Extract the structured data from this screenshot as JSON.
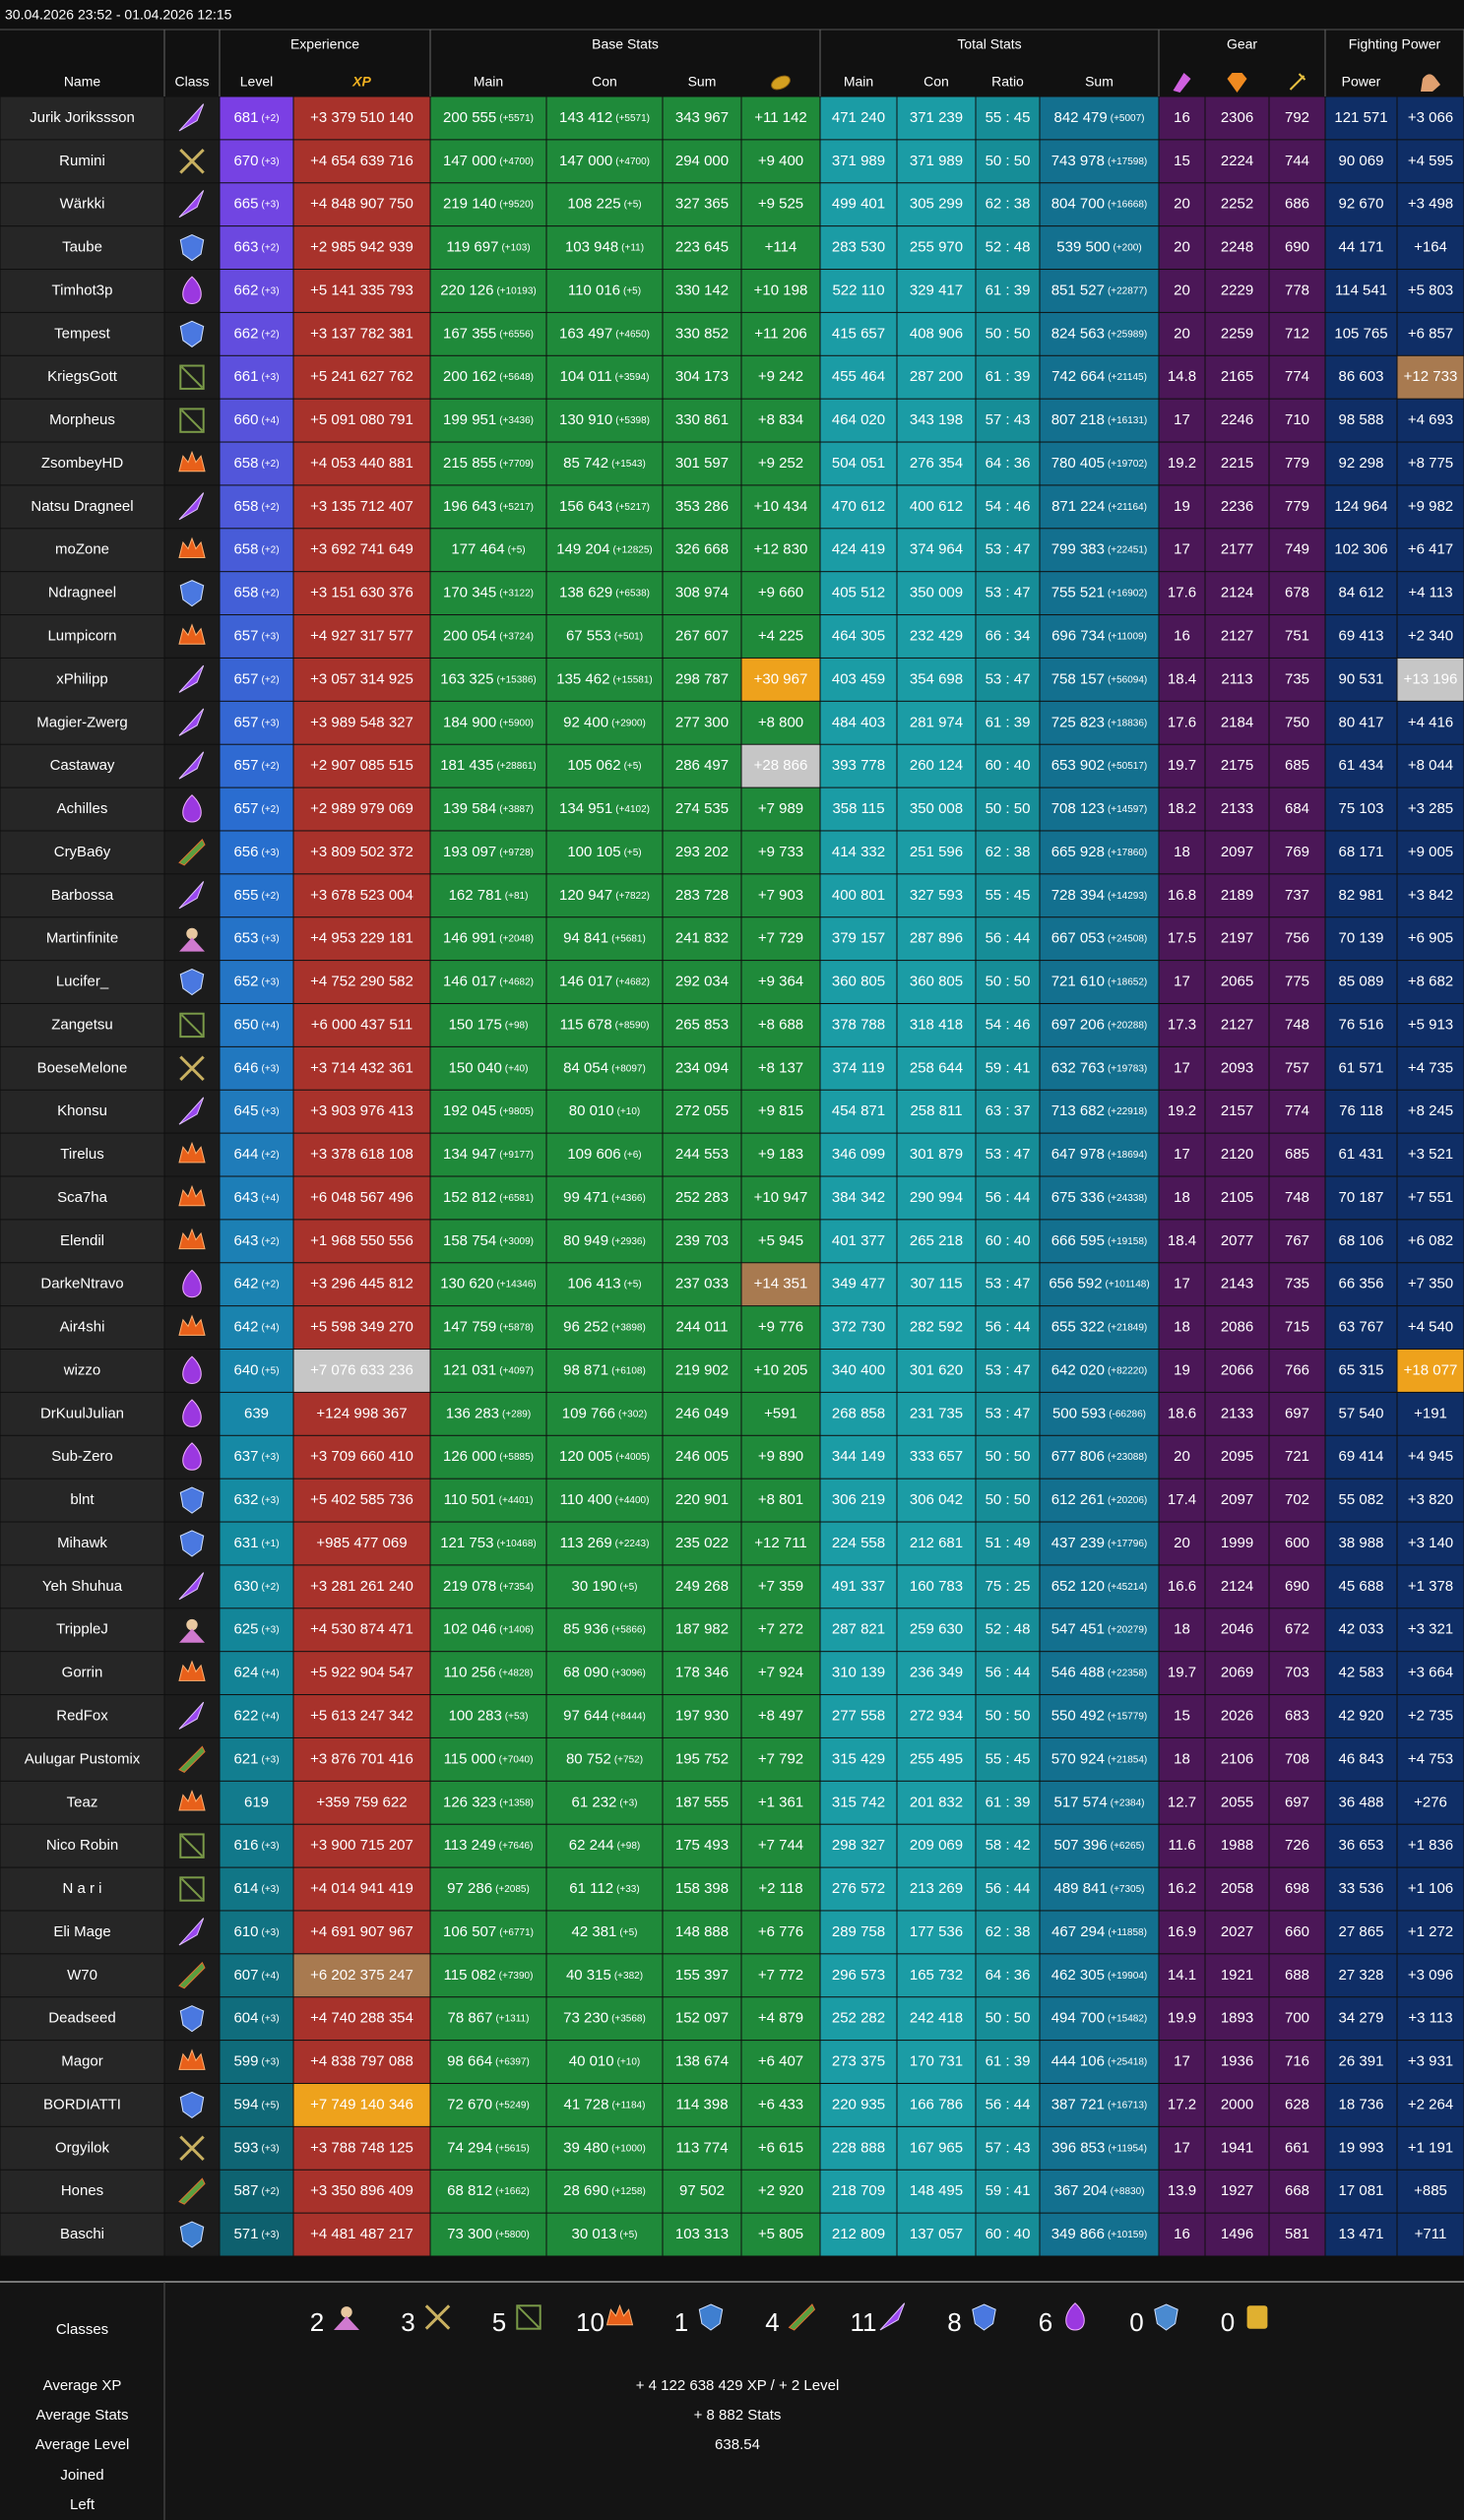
{
  "header": {
    "date": "30.04.2026 23:52 - 01.04.2026 12:15"
  },
  "columns": {
    "groups": [
      "Experience",
      "Base Stats",
      "Total Stats",
      "Gear",
      "Fighting Power"
    ],
    "names": [
      "Name",
      "Class",
      "Level",
      "XP",
      "Main",
      "Con",
      "Sum",
      null,
      "Main",
      "Con",
      "Ratio",
      "Sum",
      null,
      null,
      null,
      "Power",
      null
    ]
  },
  "rows": [
    [
      "Jurik Jorikssson",
      "681",
      "(+2)",
      "+3 379 510 140",
      "200 555",
      "(+5571)",
      "143 412",
      "(+5571)",
      "343 967",
      "+11 142",
      "471 240",
      "371 239",
      "55 : 45",
      "842 479",
      "(+5007)",
      "16",
      "2306",
      "792",
      "121 571",
      "+3 066"
    ],
    [
      "Rumini",
      "670",
      "(+3)",
      "+4 654 639 716",
      "147 000",
      "(+4700)",
      "147 000",
      "(+4700)",
      "294 000",
      "+9 400",
      "371 989",
      "371 989",
      "50 : 50",
      "743 978",
      "(+17598)",
      "15",
      "2224",
      "744",
      "90 069",
      "+4 595"
    ],
    [
      "Wärkki",
      "665",
      "(+3)",
      "+4 848 907 750",
      "219 140",
      "(+9520)",
      "108 225",
      "(+5)",
      "327 365",
      "+9 525",
      "499 401",
      "305 299",
      "62 : 38",
      "804 700",
      "(+16668)",
      "20",
      "2252",
      "686",
      "92 670",
      "+3 498"
    ],
    [
      "Taube",
      "663",
      "(+2)",
      "+2 985 942 939",
      "119 697",
      "(+103)",
      "103 948",
      "(+11)",
      "223 645",
      "+114",
      "283 530",
      "255 970",
      "52 : 48",
      "539 500",
      "(+200)",
      "20",
      "2248",
      "690",
      "44 171",
      "+164"
    ],
    [
      "Timhot3p",
      "662",
      "(+3)",
      "+5 141 335 793",
      "220 126",
      "(+10193)",
      "110 016",
      "(+5)",
      "330 142",
      "+10 198",
      "522 110",
      "329 417",
      "61 : 39",
      "851 527",
      "(+22877)",
      "20",
      "2229",
      "778",
      "114 541",
      "+5 803"
    ],
    [
      "Tempest",
      "662",
      "(+2)",
      "+3 137 782 381",
      "167 355",
      "(+6556)",
      "163 497",
      "(+4650)",
      "330 852",
      "+11 206",
      "415 657",
      "408 906",
      "50 : 50",
      "824 563",
      "(+25989)",
      "20",
      "2259",
      "712",
      "105 765",
      "+6 857"
    ],
    [
      "KriegsGott",
      "661",
      "(+3)",
      "+5 241 627 762",
      "200 162",
      "(+5648)",
      "104 011",
      "(+3594)",
      "304 173",
      "+9 242",
      "455 464",
      "287 200",
      "61 : 39",
      "742 664",
      "(+21145)",
      "14.8",
      "2165",
      "774",
      "86 603",
      "+12 733"
    ],
    [
      "Morpheus",
      "660",
      "(+4)",
      "+5 091 080 791",
      "199 951",
      "(+3436)",
      "130 910",
      "(+5398)",
      "330 861",
      "+8 834",
      "464 020",
      "343 198",
      "57 : 43",
      "807 218",
      "(+16131)",
      "17",
      "2246",
      "710",
      "98 588",
      "+4 693"
    ],
    [
      "ZsombeyHD",
      "658",
      "(+2)",
      "+4 053 440 881",
      "215 855",
      "(+7709)",
      "85 742",
      "(+1543)",
      "301 597",
      "+9 252",
      "504 051",
      "276 354",
      "64 : 36",
      "780 405",
      "(+19702)",
      "19.2",
      "2215",
      "779",
      "92 298",
      "+8 775"
    ],
    [
      "Natsu Dragneel",
      "658",
      "(+2)",
      "+3 135 712 407",
      "196 643",
      "(+5217)",
      "156 643",
      "(+5217)",
      "353 286",
      "+10 434",
      "470 612",
      "400 612",
      "54 : 46",
      "871 224",
      "(+21164)",
      "19",
      "2236",
      "779",
      "124 964",
      "+9 982"
    ],
    [
      "moZone",
      "658",
      "(+2)",
      "+3 692 741 649",
      "177 464",
      "(+5)",
      "149 204",
      "(+12825)",
      "326 668",
      "+12 830",
      "424 419",
      "374 964",
      "53 : 47",
      "799 383",
      "(+22451)",
      "17",
      "2177",
      "749",
      "102 306",
      "+6 417"
    ],
    [
      "Ndragneel",
      "658",
      "(+2)",
      "+3 151 630 376",
      "170 345",
      "(+3122)",
      "138 629",
      "(+6538)",
      "308 974",
      "+9 660",
      "405 512",
      "350 009",
      "53 : 47",
      "755 521",
      "(+16902)",
      "17.6",
      "2124",
      "678",
      "84 612",
      "+4 113"
    ],
    [
      "Lumpicorn",
      "657",
      "(+3)",
      "+4 927 317 577",
      "200 054",
      "(+3724)",
      "67 553",
      "(+501)",
      "267 607",
      "+4 225",
      "464 305",
      "232 429",
      "66 : 34",
      "696 734",
      "(+11009)",
      "16",
      "2127",
      "751",
      "69 413",
      "+2 340"
    ],
    [
      "xPhilipp",
      "657",
      "(+2)",
      "+3 057 314 925",
      "163 325",
      "(+15386)",
      "135 462",
      "(+15581)",
      "298 787",
      "+30 967",
      "403 459",
      "354 698",
      "53 : 47",
      "758 157",
      "(+56094)",
      "18.4",
      "2113",
      "735",
      "90 531",
      "+13 196"
    ],
    [
      "Magier-Zwerg",
      "657",
      "(+3)",
      "+3 989 548 327",
      "184 900",
      "(+5900)",
      "92 400",
      "(+2900)",
      "277 300",
      "+8 800",
      "484 403",
      "281 974",
      "61 : 39",
      "725 823",
      "(+18836)",
      "17.6",
      "2184",
      "750",
      "80 417",
      "+4 416"
    ],
    [
      "Castaway",
      "657",
      "(+2)",
      "+2 907 085 515",
      "181 435",
      "(+28861)",
      "105 062",
      "(+5)",
      "286 497",
      "+28 866",
      "393 778",
      "260 124",
      "60 : 40",
      "653 902",
      "(+50517)",
      "19.7",
      "2175",
      "685",
      "61 434",
      "+8 044"
    ],
    [
      "Achilles",
      "657",
      "(+2)",
      "+2 989 979 069",
      "139 584",
      "(+3887)",
      "134 951",
      "(+4102)",
      "274 535",
      "+7 989",
      "358 115",
      "350 008",
      "50 : 50",
      "708 123",
      "(+14597)",
      "18.2",
      "2133",
      "684",
      "75 103",
      "+3 285"
    ],
    [
      "CryBa6y",
      "656",
      "(+3)",
      "+3 809 502 372",
      "193 097",
      "(+9728)",
      "100 105",
      "(+5)",
      "293 202",
      "+9 733",
      "414 332",
      "251 596",
      "62 : 38",
      "665 928",
      "(+17860)",
      "18",
      "2097",
      "769",
      "68 171",
      "+9 005"
    ],
    [
      "Barbossa",
      "655",
      "(+2)",
      "+3 678 523 004",
      "162 781",
      "(+81)",
      "120 947",
      "(+7822)",
      "283 728",
      "+7 903",
      "400 801",
      "327 593",
      "55 : 45",
      "728 394",
      "(+14293)",
      "16.8",
      "2189",
      "737",
      "82 981",
      "+3 842"
    ],
    [
      "Martinfinite",
      "653",
      "(+3)",
      "+4 953 229 181",
      "146 991",
      "(+2048)",
      "94 841",
      "(+5681)",
      "241 832",
      "+7 729",
      "379 157",
      "287 896",
      "56 : 44",
      "667 053",
      "(+24508)",
      "17.5",
      "2197",
      "756",
      "70 139",
      "+6 905"
    ],
    [
      "Lucifer_",
      "652",
      "(+3)",
      "+4 752 290 582",
      "146 017",
      "(+4682)",
      "146 017",
      "(+4682)",
      "292 034",
      "+9 364",
      "360 805",
      "360 805",
      "50 : 50",
      "721 610",
      "(+18652)",
      "17",
      "2065",
      "775",
      "85 089",
      "+8 682"
    ],
    [
      "Zangetsu",
      "650",
      "(+4)",
      "+6 000 437 511",
      "150 175",
      "(+98)",
      "115 678",
      "(+8590)",
      "265 853",
      "+8 688",
      "378 788",
      "318 418",
      "54 : 46",
      "697 206",
      "(+20288)",
      "17.3",
      "2127",
      "748",
      "76 516",
      "+5 913"
    ],
    [
      "BoeseMelone",
      "646",
      "(+3)",
      "+3 714 432 361",
      "150 040",
      "(+40)",
      "84 054",
      "(+8097)",
      "234 094",
      "+8 137",
      "374 119",
      "258 644",
      "59 : 41",
      "632 763",
      "(+19783)",
      "17",
      "2093",
      "757",
      "61 571",
      "+4 735"
    ],
    [
      "Khonsu",
      "645",
      "(+3)",
      "+3 903 976 413",
      "192 045",
      "(+9805)",
      "80 010",
      "(+10)",
      "272 055",
      "+9 815",
      "454 871",
      "258 811",
      "63 : 37",
      "713 682",
      "(+22918)",
      "19.2",
      "2157",
      "774",
      "76 118",
      "+8 245"
    ],
    [
      "Tirelus",
      "644",
      "(+2)",
      "+3 378 618 108",
      "134 947",
      "(+9177)",
      "109 606",
      "(+6)",
      "244 553",
      "+9 183",
      "346 099",
      "301 879",
      "53 : 47",
      "647 978",
      "(+18694)",
      "17",
      "2120",
      "685",
      "61 431",
      "+3 521"
    ],
    [
      "Sca7ha",
      "643",
      "(+4)",
      "+6 048 567 496",
      "152 812",
      "(+6581)",
      "99 471",
      "(+4366)",
      "252 283",
      "+10 947",
      "384 342",
      "290 994",
      "56 : 44",
      "675 336",
      "(+24338)",
      "18",
      "2105",
      "748",
      "70 187",
      "+7 551"
    ],
    [
      "Elendil",
      "643",
      "(+2)",
      "+1 968 550 556",
      "158 754",
      "(+3009)",
      "80 949",
      "(+2936)",
      "239 703",
      "+5 945",
      "401 377",
      "265 218",
      "60 : 40",
      "666 595",
      "(+19158)",
      "18.4",
      "2077",
      "767",
      "68 106",
      "+6 082"
    ],
    [
      "DarkeNtravo",
      "642",
      "(+2)",
      "+3 296 445 812",
      "130 620",
      "(+14346)",
      "106 413",
      "(+5)",
      "237 033",
      "+14 351",
      "349 477",
      "307 115",
      "53 : 47",
      "656 592",
      "(+101148)",
      "17",
      "2143",
      "735",
      "66 356",
      "+7 350"
    ],
    [
      "Air4shi",
      "642",
      "(+4)",
      "+5 598 349 270",
      "147 759",
      "(+5878)",
      "96 252",
      "(+3898)",
      "244 011",
      "+9 776",
      "372 730",
      "282 592",
      "56 : 44",
      "655 322",
      "(+21849)",
      "18",
      "2086",
      "715",
      "63 767",
      "+4 540"
    ],
    [
      "wizzo",
      "640",
      "(+5)",
      "+7 076 633 236",
      "121 031",
      "(+4097)",
      "98 871",
      "(+6108)",
      "219 902",
      "+10 205",
      "340 400",
      "301 620",
      "53 : 47",
      "642 020",
      "(+82220)",
      "19",
      "2066",
      "766",
      "65 315",
      "+18 077"
    ],
    [
      "DrKuulJulian",
      "639",
      null,
      "+124 998 367",
      "136 283",
      "(+289)",
      "109 766",
      "(+302)",
      "246 049",
      "+591",
      "268 858",
      "231 735",
      "53 : 47",
      "500 593",
      "(-66286)",
      "18.6",
      "2133",
      "697",
      "57 540",
      "+191"
    ],
    [
      "Sub-Zero",
      "637",
      "(+3)",
      "+3 709 660 410",
      "126 000",
      "(+5885)",
      "120 005",
      "(+4005)",
      "246 005",
      "+9 890",
      "344 149",
      "333 657",
      "50 : 50",
      "677 806",
      "(+23088)",
      "20",
      "2095",
      "721",
      "69 414",
      "+4 945"
    ],
    [
      "blnt",
      "632",
      "(+3)",
      "+5 402 585 736",
      "110 501",
      "(+4401)",
      "110 400",
      "(+4400)",
      "220 901",
      "+8 801",
      "306 219",
      "306 042",
      "50 : 50",
      "612 261",
      "(+20206)",
      "17.4",
      "2097",
      "702",
      "55 082",
      "+3 820"
    ],
    [
      "Mihawk",
      "631",
      "(+1)",
      "+985 477 069",
      "121 753",
      "(+10468)",
      "113 269",
      "(+2243)",
      "235 022",
      "+12 711",
      "224 558",
      "212 681",
      "51 : 49",
      "437 239",
      "(+17796)",
      "20",
      "1999",
      "600",
      "38 988",
      "+3 140"
    ],
    [
      "Yeh Shuhua",
      "630",
      "(+2)",
      "+3 281 261 240",
      "219 078",
      "(+7354)",
      "30 190",
      "(+5)",
      "249 268",
      "+7 359",
      "491 337",
      "160 783",
      "75 : 25",
      "652 120",
      "(+45214)",
      "16.6",
      "2124",
      "690",
      "45 688",
      "+1 378"
    ],
    [
      "TrippleJ",
      "625",
      "(+3)",
      "+4 530 874 471",
      "102 046",
      "(+1406)",
      "85 936",
      "(+5866)",
      "187 982",
      "+7 272",
      "287 821",
      "259 630",
      "52 : 48",
      "547 451",
      "(+20279)",
      "18",
      "2046",
      "672",
      "42 033",
      "+3 321"
    ],
    [
      "Gorrin",
      "624",
      "(+4)",
      "+5 922 904 547",
      "110 256",
      "(+4828)",
      "68 090",
      "(+3096)",
      "178 346",
      "+7 924",
      "310 139",
      "236 349",
      "56 : 44",
      "546 488",
      "(+22358)",
      "19.7",
      "2069",
      "703",
      "42 583",
      "+3 664"
    ],
    [
      "RedFox",
      "622",
      "(+4)",
      "+5 613 247 342",
      "100 283",
      "(+53)",
      "97 644",
      "(+8444)",
      "197 930",
      "+8 497",
      "277 558",
      "272 934",
      "50 : 50",
      "550 492",
      "(+15779)",
      "15",
      "2026",
      "683",
      "42 920",
      "+2 735"
    ],
    [
      "Aulugar Pustomix",
      "621",
      "(+3)",
      "+3 876 701 416",
      "115 000",
      "(+7040)",
      "80 752",
      "(+752)",
      "195 752",
      "+7 792",
      "315 429",
      "255 495",
      "55 : 45",
      "570 924",
      "(+21854)",
      "18",
      "2106",
      "708",
      "46 843",
      "+4 753"
    ],
    [
      "Teaz",
      "619",
      null,
      "+359 759 622",
      "126 323",
      "(+1358)",
      "61 232",
      "(+3)",
      "187 555",
      "+1 361",
      "315 742",
      "201 832",
      "61 : 39",
      "517 574",
      "(+2384)",
      "12.7",
      "2055",
      "697",
      "36 488",
      "+276"
    ],
    [
      "Nico Robin",
      "616",
      "(+3)",
      "+3 900 715 207",
      "113 249",
      "(+7646)",
      "62 244",
      "(+98)",
      "175 493",
      "+7 744",
      "298 327",
      "209 069",
      "58 : 42",
      "507 396",
      "(+6265)",
      "11.6",
      "1988",
      "726",
      "36 653",
      "+1 836"
    ],
    [
      "N a r i",
      "614",
      "(+3)",
      "+4 014 941 419",
      "97 286",
      "(+2085)",
      "61 112",
      "(+33)",
      "158 398",
      "+2 118",
      "276 572",
      "213 269",
      "56 : 44",
      "489 841",
      "(+7305)",
      "16.2",
      "2058",
      "698",
      "33 536",
      "+1 106"
    ],
    [
      "Eli Mage",
      "610",
      "(+3)",
      "+4 691 907 967",
      "106 507",
      "(+6771)",
      "42 381",
      "(+5)",
      "148 888",
      "+6 776",
      "289 758",
      "177 536",
      "62 : 38",
      "467 294",
      "(+11858)",
      "16.9",
      "2027",
      "660",
      "27 865",
      "+1 272"
    ],
    [
      "W70",
      "607",
      "(+4)",
      "+6 202 375 247",
      "115 082",
      "(+7390)",
      "40 315",
      "(+382)",
      "155 397",
      "+7 772",
      "296 573",
      "165 732",
      "64 : 36",
      "462 305",
      "(+19904)",
      "14.1",
      "1921",
      "688",
      "27 328",
      "+3 096"
    ],
    [
      "Deadseed",
      "604",
      "(+3)",
      "+4 740 288 354",
      "78 867",
      "(+1311)",
      "73 230",
      "(+3568)",
      "152 097",
      "+4 879",
      "252 282",
      "242 418",
      "50 : 50",
      "494 700",
      "(+15482)",
      "19.9",
      "1893",
      "700",
      "34 279",
      "+3 113"
    ],
    [
      "Magor",
      "599",
      "(+3)",
      "+4 838 797 088",
      "98 664",
      "(+6397)",
      "40 010",
      "(+10)",
      "138 674",
      "+6 407",
      "273 375",
      "170 731",
      "61 : 39",
      "444 106",
      "(+25418)",
      "17",
      "1936",
      "716",
      "26 391",
      "+3 931"
    ],
    [
      "BORDIATTI",
      "594",
      "(+5)",
      "+7 749 140 346",
      "72 670",
      "(+5249)",
      "41 728",
      "(+1184)",
      "114 398",
      "+6 433",
      "220 935",
      "166 786",
      "56 : 44",
      "387 721",
      "(+16713)",
      "17.2",
      "2000",
      "628",
      "18 736",
      "+2 264"
    ],
    [
      "Orgyilok",
      "593",
      "(+3)",
      "+3 788 748 125",
      "74 294",
      "(+5615)",
      "39 480",
      "(+1000)",
      "113 774",
      "+6 615",
      "228 888",
      "167 965",
      "57 : 43",
      "396 853",
      "(+11954)",
      "17",
      "1941",
      "661",
      "19 993",
      "+1 191"
    ],
    [
      "Hones",
      "587",
      "(+2)",
      "+3 350 896 409",
      "68 812",
      "(+1662)",
      "28 690",
      "(+1258)",
      "97 502",
      "+2 920",
      "218 709",
      "148 495",
      "59 : 41",
      "367 204",
      "(+8830)",
      "13.9",
      "1927",
      "668",
      "17 081",
      "+885"
    ],
    [
      "Baschi",
      "571",
      "(+3)",
      "+4 481 487 217",
      "73 300",
      "(+5800)",
      "30 013",
      "(+5)",
      "103 313",
      "+5 805",
      "212 809",
      "137 057",
      "60 : 40",
      "349 866",
      "(+10159)",
      "16",
      "1496",
      "581",
      "13 471",
      "+711"
    ]
  ],
  "summary": {
    "classes_label": "Classes",
    "class_counts": [
      "2",
      "3",
      "5",
      "10",
      "1",
      "4",
      "11",
      "8",
      "6",
      "0",
      "0"
    ],
    "rows": [
      {
        "label": "Average XP",
        "value": "+ 4 122 638 429 XP / + 2 Level"
      },
      {
        "label": "Average Stats",
        "value": "+ 8 882 Stats"
      },
      {
        "label": "Average Level",
        "value": "638.54"
      },
      {
        "label": "Joined"
      },
      {
        "label": "Left"
      }
    ]
  }
}
